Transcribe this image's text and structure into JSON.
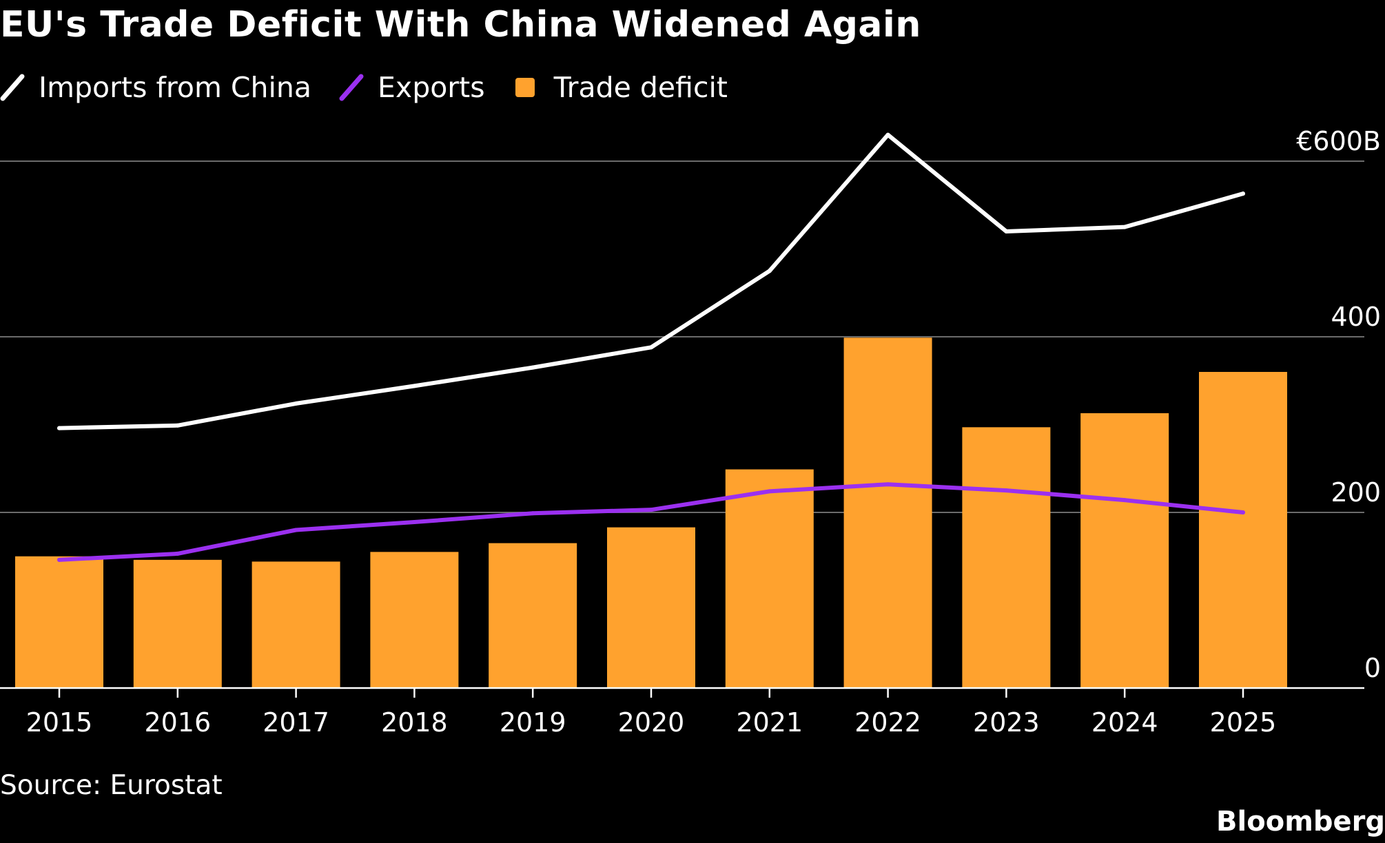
{
  "title": "EU's Trade Deficit With China Widened Again",
  "source": "Source: Eurostat",
  "brand": "Bloomberg",
  "colors": {
    "background": "#000000",
    "imports": "#ffffff",
    "exports": "#9b30f0",
    "deficit": "#ffa22e",
    "grid": "#6b6b6b",
    "text": "#ffffff"
  },
  "chart_data": {
    "type": "bar",
    "title": "EU's Trade Deficit With China Widened Again",
    "categories": [
      "2015",
      "2016",
      "2017",
      "2018",
      "2019",
      "2020",
      "2021",
      "2022",
      "2023",
      "2024",
      "2025"
    ],
    "series": [
      {
        "name": "Trade deficit",
        "type": "bar",
        "values": [
          150,
          146,
          144,
          155,
          165,
          183,
          249,
          399,
          297,
          313,
          360
        ]
      },
      {
        "name": "Imports from China",
        "type": "line",
        "values": [
          296,
          299,
          324,
          344,
          365,
          388,
          475,
          630,
          520,
          525,
          563
        ]
      },
      {
        "name": "Exports",
        "type": "line",
        "values": [
          146,
          153,
          180,
          189,
          199,
          203,
          224,
          232,
          225,
          214,
          200
        ]
      }
    ],
    "yticks": [
      0,
      200,
      400,
      600
    ],
    "ytick_labels": [
      "0",
      "200",
      "400",
      "€600B"
    ],
    "ylim": [
      0,
      650
    ],
    "grid": true,
    "legend": "top-left",
    "y_axis_side": "right"
  }
}
